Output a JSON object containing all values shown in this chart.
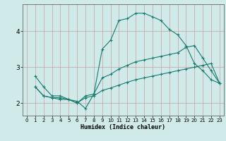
{
  "title": "",
  "xlabel": "Humidex (Indice chaleur)",
  "bg_color": "#d0eaea",
  "line_color": "#1a7a6e",
  "grid_color_v": "#c8a0a0",
  "grid_color_h": "#c8a0a0",
  "xticks": [
    0,
    1,
    2,
    3,
    4,
    5,
    6,
    7,
    8,
    9,
    10,
    11,
    12,
    13,
    14,
    15,
    16,
    17,
    18,
    19,
    20,
    21,
    22,
    23
  ],
  "yticks": [
    2,
    3,
    4
  ],
  "xlim": [
    -0.5,
    23.5
  ],
  "ylim": [
    1.65,
    4.75
  ],
  "series": [
    {
      "x": [
        1,
        2,
        3,
        4,
        5,
        6,
        7,
        8,
        9,
        10,
        11,
        12,
        13,
        14,
        15,
        16,
        17,
        18,
        19,
        20,
        21,
        22,
        23
      ],
      "y": [
        2.75,
        2.45,
        2.2,
        2.2,
        2.1,
        2.05,
        1.85,
        2.25,
        3.5,
        3.75,
        4.3,
        4.35,
        4.5,
        4.5,
        4.4,
        4.3,
        4.05,
        3.9,
        3.6,
        3.1,
        2.9,
        2.65,
        2.55
      ]
    },
    {
      "x": [
        1,
        2,
        3,
        4,
        5,
        6,
        7,
        8,
        9,
        10,
        11,
        12,
        13,
        14,
        15,
        16,
        17,
        18,
        19,
        20,
        21,
        22,
        23
      ],
      "y": [
        2.45,
        2.2,
        2.15,
        2.15,
        2.1,
        2.0,
        2.2,
        2.25,
        2.7,
        2.8,
        2.95,
        3.05,
        3.15,
        3.2,
        3.25,
        3.3,
        3.35,
        3.4,
        3.55,
        3.6,
        3.25,
        2.9,
        2.55
      ]
    },
    {
      "x": [
        1,
        2,
        3,
        4,
        5,
        6,
        7,
        8,
        9,
        10,
        11,
        12,
        13,
        14,
        15,
        16,
        17,
        18,
        19,
        20,
        21,
        22,
        23
      ],
      "y": [
        2.45,
        2.2,
        2.15,
        2.1,
        2.1,
        2.0,
        2.15,
        2.2,
        2.35,
        2.42,
        2.5,
        2.58,
        2.65,
        2.7,
        2.75,
        2.8,
        2.85,
        2.9,
        2.95,
        3.0,
        3.05,
        3.1,
        2.55
      ]
    }
  ]
}
